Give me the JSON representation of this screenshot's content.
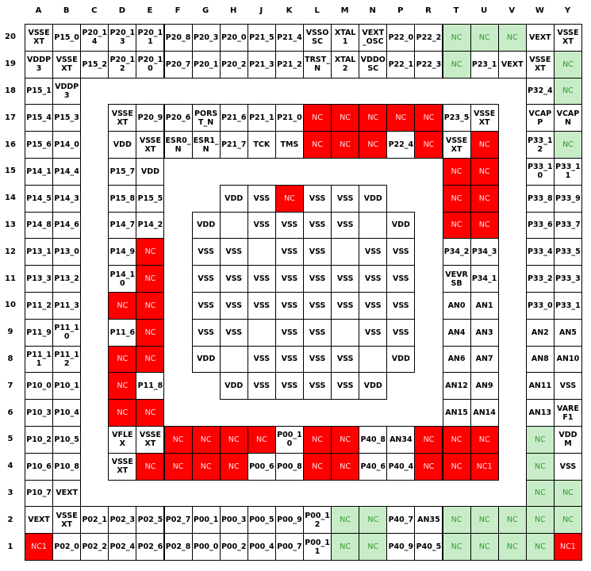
{
  "columns": [
    "A",
    "B",
    "C",
    "D",
    "E",
    "F",
    "G",
    "H",
    "J",
    "K",
    "L",
    "M",
    "N",
    "P",
    "R",
    "T",
    "U",
    "V",
    "W",
    "Y"
  ],
  "rows": [
    {
      "label": "20",
      "cells": [
        "VSSEXT",
        "P15_0",
        "P20_14",
        "P20_13",
        "P20_11",
        "P20_8",
        "P20_3",
        "P20_0",
        "P21_5",
        "P21_4",
        "VSSOSC",
        "XTAL1",
        "VEXT_OSC",
        "P22_0",
        "P22_2",
        "NC",
        "NC",
        "NC",
        "VEXT",
        "VSSEXT"
      ],
      "fills": [
        null,
        null,
        null,
        null,
        null,
        null,
        null,
        null,
        null,
        null,
        null,
        null,
        null,
        null,
        null,
        "green",
        "green",
        "green",
        null,
        null
      ]
    },
    {
      "label": "19",
      "cells": [
        "VDDP3",
        "VSSEXT",
        "P15_2",
        "P20_12",
        "P20_10",
        "P20_7",
        "P20_1",
        "P20_2",
        "P21_3",
        "P21_2",
        "TRST_N",
        "XTAL2",
        "VDDOSC",
        "P22_1",
        "P22_3",
        "NC",
        "P23_1",
        "VEXT",
        "VSSEXT",
        "NC"
      ],
      "fills": [
        null,
        null,
        null,
        null,
        null,
        null,
        null,
        null,
        null,
        null,
        null,
        null,
        null,
        null,
        null,
        "green",
        null,
        null,
        null,
        "green"
      ]
    },
    {
      "label": "18",
      "cells": [
        "P15_1",
        "VDDP3",
        null,
        null,
        null,
        null,
        null,
        null,
        null,
        null,
        null,
        null,
        null,
        null,
        null,
        null,
        null,
        null,
        "P32_4",
        "NC"
      ],
      "fills": [
        null,
        null,
        null,
        null,
        null,
        null,
        null,
        null,
        null,
        null,
        null,
        null,
        null,
        null,
        null,
        null,
        null,
        null,
        null,
        "green"
      ]
    },
    {
      "label": "17",
      "cells": [
        "P15_4",
        "P15_3",
        null,
        "VSSEXT",
        "P20_9",
        "P20_6",
        "PORST_N",
        "P21_6",
        "P21_1",
        "P21_0",
        "NC",
        "NC",
        "NC",
        "NC",
        "NC",
        "P23_5",
        "VSSEXT",
        null,
        "VCAPP",
        "VCAPN"
      ],
      "fills": [
        null,
        null,
        null,
        null,
        null,
        null,
        null,
        null,
        null,
        null,
        "red",
        "red",
        "red",
        "red",
        "red",
        null,
        null,
        null,
        null,
        null
      ]
    },
    {
      "label": "16",
      "cells": [
        "P15_6",
        "P14_0",
        null,
        "VDD",
        "VSSEXT",
        "ESR0_N",
        "ESR1_N",
        "P21_7",
        "TCK",
        "TMS",
        "NC",
        "NC",
        "NC",
        "P22_4",
        "NC",
        "VSSEXT",
        "NC",
        null,
        "P33_12",
        "NC"
      ],
      "fills": [
        null,
        null,
        null,
        null,
        null,
        null,
        null,
        null,
        null,
        null,
        "red",
        "red",
        "red",
        null,
        "red",
        null,
        "red",
        null,
        null,
        "green"
      ]
    },
    {
      "label": "15",
      "cells": [
        "P14_1",
        "P14_4",
        null,
        "P15_7",
        "VDD",
        null,
        null,
        null,
        null,
        null,
        null,
        null,
        null,
        null,
        null,
        "NC",
        "NC",
        null,
        "P33_10",
        "P33_11"
      ],
      "fills": [
        null,
        null,
        null,
        null,
        null,
        null,
        null,
        null,
        null,
        null,
        null,
        null,
        null,
        null,
        null,
        "red",
        "red",
        null,
        null,
        null
      ]
    },
    {
      "label": "14",
      "cells": [
        "P14_5",
        "P14_3",
        null,
        "P15_8",
        "P15_5",
        null,
        null,
        "VDD",
        "VSS",
        "NC",
        "VSS",
        "VSS",
        "VDD",
        null,
        null,
        "NC",
        "NC",
        null,
        "P33_8",
        "P33_9"
      ],
      "fills": [
        null,
        null,
        null,
        null,
        null,
        null,
        null,
        null,
        null,
        "red",
        null,
        null,
        null,
        null,
        null,
        "red",
        "red",
        null,
        null,
        null
      ]
    },
    {
      "label": "13",
      "cells": [
        "P14_8",
        "P14_6",
        null,
        "P14_7",
        "P14_2",
        null,
        "VDD",
        null,
        "VSS",
        "VSS",
        "VSS",
        "VSS",
        null,
        "VDD",
        null,
        "NC",
        "NC",
        null,
        "P33_6",
        "P33_7"
      ],
      "fills": [
        null,
        null,
        null,
        null,
        null,
        null,
        null,
        null,
        null,
        null,
        null,
        null,
        null,
        null,
        null,
        "red",
        "red",
        null,
        null,
        null
      ]
    },
    {
      "label": "12",
      "cells": [
        "P13_1",
        "P13_0",
        null,
        "P14_9",
        "NC",
        null,
        "VSS",
        "VSS",
        null,
        "VSS",
        "VSS",
        null,
        "VSS",
        "VSS",
        null,
        "P34_2",
        "P34_3",
        null,
        "P33_4",
        "P33_5"
      ],
      "fills": [
        null,
        null,
        null,
        null,
        "red",
        null,
        null,
        null,
        null,
        null,
        null,
        null,
        null,
        null,
        null,
        null,
        null,
        null,
        null,
        null
      ]
    },
    {
      "label": "11",
      "cells": [
        "P13_3",
        "P13_2",
        null,
        "P14_10",
        "NC",
        null,
        "VSS",
        "VSS",
        "VSS",
        "VSS",
        "VSS",
        "VSS",
        "VSS",
        "VSS",
        null,
        "VEVRSB",
        "P34_1",
        null,
        "P33_2",
        "P33_3"
      ],
      "fills": [
        null,
        null,
        null,
        null,
        "red",
        null,
        null,
        null,
        null,
        null,
        null,
        null,
        null,
        null,
        null,
        null,
        null,
        null,
        null,
        null
      ]
    },
    {
      "label": "10",
      "cells": [
        "P11_2",
        "P11_3",
        null,
        "NC",
        "NC",
        null,
        "VSS",
        "VSS",
        "VSS",
        "VSS",
        "VSS",
        "VSS",
        "VSS",
        "VSS",
        null,
        "AN0",
        "AN1",
        null,
        "P33_0",
        "P33_1"
      ],
      "fills": [
        null,
        null,
        null,
        "red",
        "red",
        null,
        null,
        null,
        null,
        null,
        null,
        null,
        null,
        null,
        null,
        null,
        null,
        null,
        null,
        null
      ]
    },
    {
      "label": "9",
      "cells": [
        "P11_9",
        "P11_10",
        null,
        "P11_6",
        "NC",
        null,
        "VSS",
        "VSS",
        null,
        "VSS",
        "VSS",
        null,
        "VSS",
        "VSS",
        null,
        "AN4",
        "AN3",
        null,
        "AN2",
        "AN5"
      ],
      "fills": [
        null,
        null,
        null,
        null,
        "red",
        null,
        null,
        null,
        null,
        null,
        null,
        null,
        null,
        null,
        null,
        null,
        null,
        null,
        null,
        null
      ]
    },
    {
      "label": "8",
      "cells": [
        "P11_11",
        "P11_12",
        null,
        "NC",
        "NC",
        null,
        "VDD",
        null,
        "VSS",
        "VSS",
        "VSS",
        "VSS",
        null,
        "VDD",
        null,
        "AN6",
        "AN7",
        null,
        "AN8",
        "AN10"
      ],
      "fills": [
        null,
        null,
        null,
        "red",
        "red",
        null,
        null,
        null,
        null,
        null,
        null,
        null,
        null,
        null,
        null,
        null,
        null,
        null,
        null,
        null
      ]
    },
    {
      "label": "7",
      "cells": [
        "P10_0",
        "P10_1",
        null,
        "NC",
        "P11_8",
        null,
        null,
        "VDD",
        "VSS",
        "VSS",
        "VSS",
        "VSS",
        "VDD",
        null,
        null,
        "AN12",
        "AN9",
        null,
        "AN11",
        "VSS"
      ],
      "fills": [
        null,
        null,
        null,
        "red",
        null,
        null,
        null,
        null,
        null,
        null,
        null,
        null,
        null,
        null,
        null,
        null,
        null,
        null,
        null,
        null
      ]
    },
    {
      "label": "6",
      "cells": [
        "P10_3",
        "P10_4",
        null,
        "NC",
        "NC",
        null,
        null,
        null,
        null,
        null,
        null,
        null,
        null,
        null,
        null,
        "AN15",
        "AN14",
        null,
        "AN13",
        "VAREF1"
      ],
      "fills": [
        null,
        null,
        null,
        "red",
        "red",
        null,
        null,
        null,
        null,
        null,
        null,
        null,
        null,
        null,
        null,
        null,
        null,
        null,
        null,
        null
      ]
    },
    {
      "label": "5",
      "cells": [
        "P10_2",
        "P10_5",
        null,
        "VFLEX",
        "VSSEXT",
        "NC",
        "NC",
        "NC",
        "NC",
        "P00_10",
        "NC",
        "NC",
        "P40_8",
        "AN34",
        "NC",
        "NC",
        "NC",
        null,
        "NC",
        "VDDM"
      ],
      "fills": [
        null,
        null,
        null,
        null,
        null,
        "red",
        "red",
        "red",
        "red",
        null,
        "red",
        "red",
        null,
        null,
        "red",
        "red",
        "red",
        null,
        "green",
        null
      ]
    },
    {
      "label": "4",
      "cells": [
        "P10_6",
        "P10_8",
        null,
        "VSSEXT",
        "NC",
        "NC",
        "NC",
        "NC",
        "P00_6",
        "P00_8",
        "NC",
        "NC",
        "P40_6",
        "P40_4",
        "NC",
        "NC",
        "NC1",
        null,
        "NC",
        "VSS"
      ],
      "fills": [
        null,
        null,
        null,
        null,
        "red",
        "red",
        "red",
        "red",
        null,
        null,
        "red",
        "red",
        null,
        null,
        "red",
        "red",
        "red",
        null,
        "green",
        null
      ]
    },
    {
      "label": "3",
      "cells": [
        "P10_7",
        "VEXT",
        null,
        null,
        null,
        null,
        null,
        null,
        null,
        null,
        null,
        null,
        null,
        null,
        null,
        null,
        null,
        null,
        "NC",
        "NC"
      ],
      "fills": [
        null,
        null,
        null,
        null,
        null,
        null,
        null,
        null,
        null,
        null,
        null,
        null,
        null,
        null,
        null,
        null,
        null,
        null,
        "green",
        "green"
      ]
    },
    {
      "label": "2",
      "cells": [
        "VEXT",
        "VSSEXT",
        "P02_1",
        "P02_3",
        "P02_5",
        "P02_7",
        "P00_1",
        "P00_3",
        "P00_5",
        "P00_9",
        "P00_12",
        "NC",
        "NC",
        "P40_7",
        "AN35",
        "NC",
        "NC",
        "NC",
        "NC",
        "NC"
      ],
      "fills": [
        null,
        null,
        null,
        null,
        null,
        null,
        null,
        null,
        null,
        null,
        null,
        "green",
        "green",
        null,
        null,
        "green",
        "green",
        "green",
        "green",
        "green"
      ]
    },
    {
      "label": "1",
      "cells": [
        "NC1",
        "P02_0",
        "P02_2",
        "P02_4",
        "P02_6",
        "P02_8",
        "P00_0",
        "P00_2",
        "P00_4",
        "P00_7",
        "P00_11",
        "NC",
        "NC",
        "P40_9",
        "P40_5",
        "NC",
        "NC",
        "NC",
        "NC",
        "NC1"
      ],
      "fills": [
        "red",
        null,
        null,
        null,
        null,
        null,
        null,
        null,
        null,
        null,
        null,
        "green",
        "green",
        null,
        null,
        "green",
        "green",
        "green",
        "green",
        "red"
      ]
    }
  ]
}
